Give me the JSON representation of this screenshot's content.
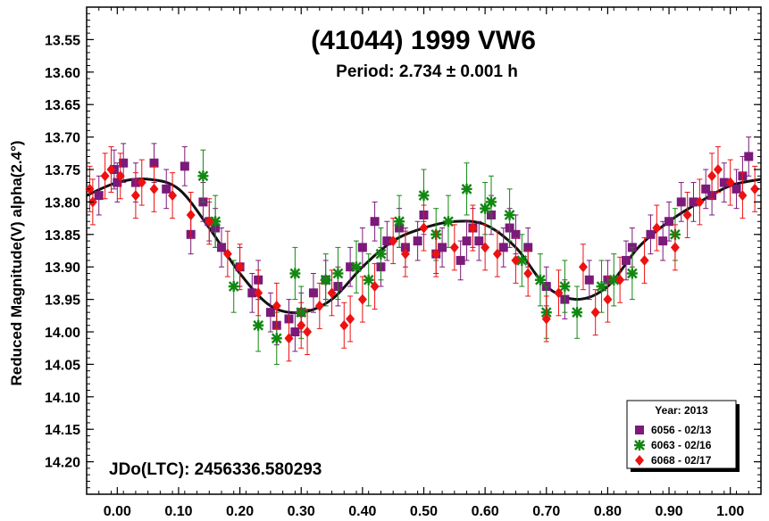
{
  "chart_data": {
    "type": "scatter",
    "title": "(41044) 1999 VW6",
    "subtitle": "Period: 2.734 ± 0.001 h",
    "xlabel": "",
    "ylabel": "Reduced Magnitude(V) alpha(2.4°)",
    "annotation": "JDo(LTC): 2456336.580293",
    "xlim": [
      -0.05,
      1.05
    ],
    "ylim": [
      14.25,
      13.5
    ],
    "y_inverted": true,
    "x_ticks": [
      "0.00",
      "0.10",
      "0.20",
      "0.30",
      "0.40",
      "0.50",
      "0.60",
      "0.70",
      "0.80",
      "0.90",
      "1.00"
    ],
    "y_ticks": [
      "13.55",
      "13.60",
      "13.65",
      "13.70",
      "13.75",
      "13.80",
      "13.85",
      "13.90",
      "13.95",
      "14.00",
      "14.05",
      "14.10",
      "14.15",
      "14.20"
    ],
    "grid": false,
    "legend": {
      "title": "Year: 2013",
      "placement": "bottom-right",
      "entries": [
        {
          "label": "6056 - 02/13",
          "marker": "square",
          "color": "#7B1A7B"
        },
        {
          "label": "6063 - 02/16",
          "marker": "asterisk",
          "color": "#118811"
        },
        {
          "label": "6068 - 02/17",
          "marker": "diamond",
          "color": "#EE1111"
        }
      ]
    },
    "fit_curve": {
      "x": [
        -0.05,
        0.0,
        0.05,
        0.1,
        0.15,
        0.2,
        0.25,
        0.3,
        0.35,
        0.4,
        0.45,
        0.5,
        0.55,
        0.6,
        0.65,
        0.7,
        0.75,
        0.8,
        0.85,
        0.9,
        0.95,
        1.0,
        1.05
      ],
      "y": [
        13.79,
        13.77,
        13.765,
        13.78,
        13.84,
        13.91,
        13.96,
        13.97,
        13.95,
        13.9,
        13.86,
        13.84,
        13.83,
        13.835,
        13.87,
        13.93,
        13.95,
        13.93,
        13.87,
        13.83,
        13.8,
        13.775,
        13.765
      ],
      "color": "#111111"
    },
    "series": [
      {
        "name": "6056 - 02/13",
        "marker": "square",
        "color": "#7B1A7B",
        "x": [
          -0.03,
          -0.005,
          0.0,
          0.01,
          0.03,
          0.06,
          0.08,
          0.11,
          0.12,
          0.14,
          0.15,
          0.16,
          0.17,
          0.2,
          0.22,
          0.23,
          0.25,
          0.26,
          0.28,
          0.29,
          0.3,
          0.32,
          0.34,
          0.36,
          0.38,
          0.4,
          0.42,
          0.43,
          0.44,
          0.46,
          0.47,
          0.49,
          0.5,
          0.52,
          0.53,
          0.56,
          0.57,
          0.58,
          0.59,
          0.61,
          0.63,
          0.64,
          0.65,
          0.67,
          0.7,
          0.73,
          0.77,
          0.8,
          0.83,
          0.84,
          0.87,
          0.89,
          0.9,
          0.92,
          0.94,
          0.96,
          0.97,
          0.99,
          1.01,
          1.02,
          1.03
        ],
        "y": [
          13.79,
          13.75,
          13.77,
          13.74,
          13.77,
          13.74,
          13.78,
          13.745,
          13.85,
          13.8,
          13.83,
          13.84,
          13.87,
          13.9,
          13.94,
          13.92,
          13.97,
          13.99,
          13.98,
          14.0,
          13.97,
          13.94,
          13.92,
          13.93,
          13.9,
          13.87,
          13.83,
          13.9,
          13.86,
          13.84,
          13.87,
          13.86,
          13.82,
          13.88,
          13.87,
          13.89,
          13.86,
          13.84,
          13.86,
          13.82,
          13.87,
          13.84,
          13.85,
          13.87,
          13.93,
          13.95,
          13.92,
          13.92,
          13.89,
          13.87,
          13.85,
          13.86,
          13.83,
          13.8,
          13.8,
          13.78,
          13.79,
          13.77,
          13.78,
          13.76,
          13.73
        ],
        "err": 0.03
      },
      {
        "name": "6063 - 02/16",
        "marker": "asterisk",
        "color": "#118811",
        "x": [
          0.14,
          0.16,
          0.19,
          0.23,
          0.26,
          0.29,
          0.3,
          0.34,
          0.36,
          0.39,
          0.41,
          0.43,
          0.46,
          0.5,
          0.52,
          0.54,
          0.57,
          0.6,
          0.61,
          0.64,
          0.66,
          0.69,
          0.7,
          0.73,
          0.75,
          0.79,
          0.81,
          0.84,
          0.91
        ],
        "y": [
          13.76,
          13.83,
          13.93,
          13.99,
          14.01,
          13.91,
          13.97,
          13.92,
          13.91,
          13.9,
          13.92,
          13.88,
          13.83,
          13.79,
          13.85,
          13.83,
          13.78,
          13.81,
          13.8,
          13.82,
          13.89,
          13.92,
          13.97,
          13.93,
          13.97,
          13.93,
          13.92,
          13.91,
          13.85
        ],
        "err": 0.04
      },
      {
        "name": "6068 - 02/17",
        "marker": "diamond",
        "color": "#EE1111",
        "x": [
          -0.045,
          -0.04,
          -0.02,
          -0.01,
          0.005,
          0.03,
          0.04,
          0.06,
          0.09,
          0.12,
          0.15,
          0.18,
          0.2,
          0.23,
          0.26,
          0.28,
          0.3,
          0.31,
          0.33,
          0.35,
          0.37,
          0.38,
          0.4,
          0.42,
          0.45,
          0.47,
          0.5,
          0.52,
          0.55,
          0.58,
          0.6,
          0.62,
          0.65,
          0.67,
          0.7,
          0.72,
          0.76,
          0.78,
          0.8,
          0.82,
          0.86,
          0.88,
          0.91,
          0.93,
          0.95,
          0.97,
          0.98,
          1.0,
          1.02,
          1.04
        ],
        "y": [
          13.78,
          13.8,
          13.76,
          13.75,
          13.76,
          13.79,
          13.77,
          13.78,
          13.79,
          13.82,
          13.83,
          13.88,
          13.9,
          13.94,
          13.96,
          14.01,
          13.99,
          14.0,
          13.96,
          13.94,
          13.99,
          13.98,
          13.95,
          13.93,
          13.86,
          13.88,
          13.84,
          13.88,
          13.87,
          13.84,
          13.87,
          13.88,
          13.89,
          13.91,
          13.98,
          13.94,
          13.9,
          13.97,
          13.95,
          13.92,
          13.89,
          13.84,
          13.87,
          13.82,
          13.8,
          13.76,
          13.75,
          13.77,
          13.79,
          13.78
        ],
        "err": 0.035
      }
    ]
  }
}
